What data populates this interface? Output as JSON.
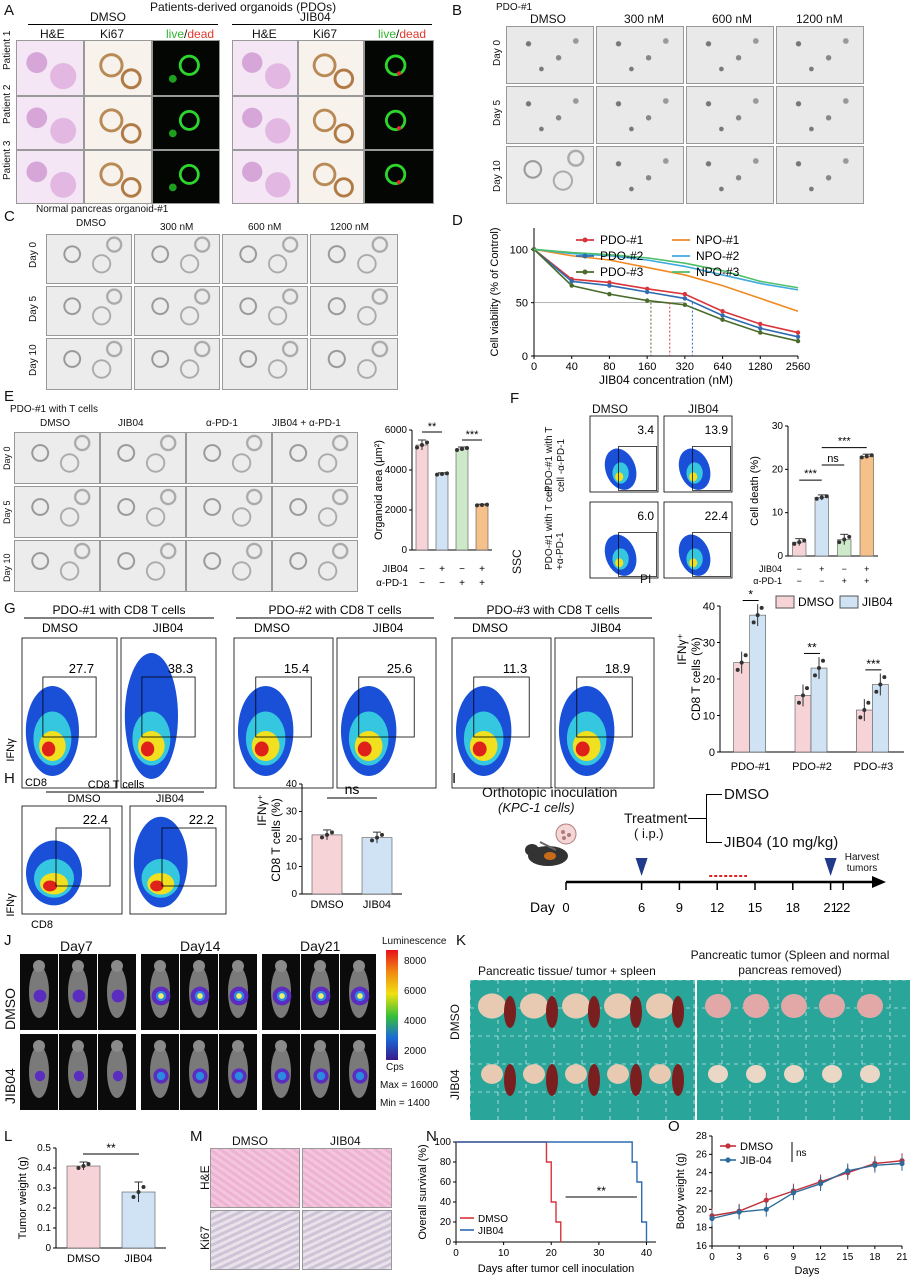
{
  "A": {
    "letter": "A",
    "title": "Patients-derived organoids (PDOs)",
    "group1": "DMSO",
    "group2": "JIB04",
    "col_he": "H&E",
    "col_ki67": "Ki67",
    "col_live": "live",
    "col_slash": "/",
    "col_dead": "dead",
    "rows": [
      "Patient 1",
      "Patient 2",
      "Patient 3"
    ]
  },
  "B": {
    "letter": "B",
    "title": "PDO-#1",
    "cols": [
      "DMSO",
      "300 nM",
      "600 nM",
      "1200 nM"
    ],
    "rows": [
      "Day 0",
      "Day 5",
      "Day 10"
    ]
  },
  "C": {
    "letter": "C",
    "title": "Normal pancreas organoid-#1",
    "cols": [
      "DMSO",
      "300 nM",
      "600 nM",
      "1200 nM"
    ],
    "rows": [
      "Day 0",
      "Day 5",
      "Day 10"
    ]
  },
  "D": {
    "letter": "D",
    "ylabel": "Cell viability (% of Control)",
    "xlabel": "JIB04 concentration (nM)",
    "legend": [
      "PDO-#1",
      "PDO-#2",
      "PDO-#3",
      "NPO-#1",
      "NPO-#2",
      "NPO-#3"
    ],
    "xticks": [
      "0",
      "40",
      "80",
      "160",
      "320",
      "640",
      "1280",
      "2560"
    ],
    "yticks": [
      "0",
      "50",
      "100"
    ]
  },
  "E": {
    "letter": "E",
    "title": "PDO-#1 with T cells",
    "cols": [
      "DMSO",
      "JIB04",
      "α-PD-1",
      "JIB04 + α-PD-1"
    ],
    "rows": [
      "Day 0",
      "Day 5",
      "Day 10"
    ],
    "ylabel": "Organoid area (μm²)",
    "yticks": [
      "0",
      "2000",
      "4000",
      "6000"
    ],
    "sig": [
      "**",
      "***"
    ],
    "row_jib": "JIB04",
    "row_pd1": "α-PD-1",
    "jib_signs": [
      "−",
      "+",
      "−",
      "+"
    ],
    "pd1_signs": [
      "−",
      "−",
      "+",
      "+"
    ]
  },
  "F": {
    "letter": "F",
    "cols": [
      "DMSO",
      "JIB04"
    ],
    "row1": "PDO-#1 with T cell -α-PD-1",
    "row2": "PDO-#1 with T cell +α-PD-1",
    "values": [
      "3.4",
      "13.9",
      "6.0",
      "22.4"
    ],
    "ssc": "SSC",
    "pi": "PI",
    "ylabel": "Cell death (%)",
    "yticks": [
      "0",
      "10",
      "20",
      "30"
    ],
    "sig": [
      "***",
      "ns",
      "***"
    ],
    "row_jib": "JIB04",
    "row_pd1": "α-PD-1",
    "jib_signs": [
      "−",
      "+",
      "−",
      "+"
    ],
    "pd1_signs": [
      "−",
      "−",
      "+",
      "+"
    ]
  },
  "G": {
    "letter": "G",
    "groups": [
      "PDO-#1 with CD8 T cells",
      "PDO-#2 with CD8 T cells",
      "PDO-#3 with CD8 T cells"
    ],
    "sub": [
      "DMSO",
      "JIB04"
    ],
    "values": [
      "27.7",
      "38.3",
      "15.4",
      "25.6",
      "11.3",
      "18.9"
    ],
    "xaxis": "CD8",
    "yaxis": "IFNγ",
    "ylabel_main": "CD8 T cells (%)",
    "ylabel_sup": "IFNγ⁺",
    "legend": [
      "DMSO",
      "JIB04"
    ],
    "categories": [
      "PDO-#1",
      "PDO-#2",
      "PDO-#3"
    ],
    "yticks": [
      "0",
      "10",
      "20",
      "30",
      "40"
    ],
    "sig": [
      "*",
      "**",
      "***"
    ]
  },
  "H": {
    "letter": "H",
    "title": "CD8 T cells",
    "sub": [
      "DMSO",
      "JIB04"
    ],
    "values": [
      "22.4",
      "22.2"
    ],
    "xaxis": "CD8",
    "yaxis": "IFNγ",
    "ylabel_main": "CD8 T cells (%)",
    "ylabel_sup": "IFNγ⁺",
    "yticks": [
      "0",
      "10",
      "20",
      "30",
      "40"
    ],
    "sig": "ns",
    "categories": [
      "DMSO",
      "JIB04"
    ]
  },
  "I": {
    "letter": "I",
    "title": "Orthotopic inoculation",
    "subtitle": "(KPC-1 cells)",
    "treatment": "Treatment",
    "route": "( i.p.)",
    "arm1": "DMSO",
    "arm2": "JIB04  (10 mg/kg)",
    "harvest": "Harvest tumors",
    "day": "Day",
    "days": [
      "0",
      "6",
      "9",
      "12",
      "15",
      "18",
      "21",
      "22"
    ]
  },
  "J": {
    "letter": "J",
    "cols": [
      "Day7",
      "Day14",
      "Day21"
    ],
    "rows": [
      "DMSO",
      "JIB04"
    ],
    "scale_title": "Luminescence",
    "scale_ticks": [
      "8000",
      "6000",
      "4000",
      "2000"
    ],
    "scale_unit": "Cps",
    "max": "Max = 16000",
    "min": "Min = 1400"
  },
  "K": {
    "letter": "K",
    "left_title": "Pancreatic tissue/ tumor + spleen",
    "right_title": "Pancreatic tumor (Spleen and normal pancreas removed)",
    "rows": [
      "DMSO",
      "JIB04"
    ]
  },
  "L": {
    "letter": "L",
    "ylabel": "Tumor weight (g)",
    "yticks": [
      "0",
      "0.1",
      "0.2",
      "0.3",
      "0.4",
      "0.5"
    ],
    "categories": [
      "DMSO",
      "JIB04"
    ],
    "sig": "**"
  },
  "M": {
    "letter": "M",
    "cols": [
      "DMSO",
      "JIB04"
    ],
    "rows": [
      "H&E",
      "Ki67"
    ]
  },
  "N": {
    "letter": "N",
    "ylabel": "Overall survival (%)",
    "xlabel": "Days after tumor cell inoculation",
    "xticks": [
      "0",
      "10",
      "20",
      "30",
      "40"
    ],
    "yticks": [
      "0",
      "20",
      "40",
      "60",
      "80",
      "100"
    ],
    "legend": [
      "DMSO",
      "JIB04"
    ],
    "sig": "**"
  },
  "O": {
    "letter": "O",
    "ylabel": "Body weight (g)",
    "xlabel": "Days",
    "xticks": [
      "0",
      "3",
      "6",
      "9",
      "12",
      "15",
      "18",
      "21"
    ],
    "yticks": [
      "16",
      "18",
      "20",
      "22",
      "24",
      "26",
      "28"
    ],
    "legend": [
      "DMSO",
      "JIB-04"
    ],
    "sig": "ns"
  },
  "colors": {
    "dmso_bar": "#f6d3d6",
    "jib_bar": "#cfe3f4",
    "pd1_bar": "#cde9c9",
    "combo_bar": "#f6c08a",
    "pdo1": "#d9343a",
    "pdo2": "#2e6bb0",
    "pdo3": "#4a6b2a",
    "npo1": "#f08a24",
    "npo2": "#3fa9e0",
    "npo3": "#4cbf6a"
  },
  "chart_data": [
    {
      "type": "line",
      "panel": "D",
      "x": [
        0,
        40,
        80,
        160,
        320,
        640,
        1280,
        2560
      ],
      "series": [
        {
          "name": "PDO-#1",
          "values": [
            100,
            72,
            69,
            63,
            58,
            42,
            30,
            22
          ]
        },
        {
          "name": "PDO-#2",
          "values": [
            100,
            70,
            66,
            60,
            54,
            38,
            26,
            18
          ]
        },
        {
          "name": "PDO-#3",
          "values": [
            100,
            66,
            58,
            52,
            48,
            34,
            22,
            14
          ]
        },
        {
          "name": "NPO-#1",
          "values": [
            100,
            94,
            90,
            83,
            76,
            66,
            54,
            42
          ]
        },
        {
          "name": "NPO-#2",
          "values": [
            100,
            96,
            94,
            90,
            84,
            76,
            68,
            62
          ]
        },
        {
          "name": "NPO-#3",
          "values": [
            100,
            97,
            95,
            92,
            87,
            80,
            70,
            64
          ]
        }
      ],
      "xlabel": "JIB04 concentration (nM)",
      "ylabel": "Cell viability (% of Control)",
      "ylim": [
        0,
        120
      ]
    },
    {
      "type": "bar",
      "panel": "E",
      "categories": [
        "DMSO",
        "JIB04",
        "α-PD-1",
        "JIB04 + α-PD-1"
      ],
      "values": [
        5250,
        3800,
        5050,
        2250
      ],
      "ylabel": "Organoid area (μm²)",
      "ylim": [
        0,
        6000
      ]
    },
    {
      "type": "bar",
      "panel": "F",
      "categories": [
        "DMSO",
        "JIB04",
        "α-PD-1",
        "JIB04 + α-PD-1"
      ],
      "values": [
        3.2,
        13.5,
        3.8,
        23
      ],
      "ylabel": "Cell death (%)",
      "ylim": [
        0,
        30
      ]
    },
    {
      "type": "bar",
      "panel": "G",
      "categories": [
        "PDO-#1",
        "PDO-#2",
        "PDO-#3"
      ],
      "series": [
        {
          "name": "DMSO",
          "values": [
            24.5,
            15.5,
            11.5
          ]
        },
        {
          "name": "JIB04",
          "values": [
            37.5,
            23,
            18.5
          ]
        }
      ],
      "ylabel": "IFNγ⁺ CD8 T cells (%)",
      "ylim": [
        0,
        40
      ]
    },
    {
      "type": "bar",
      "panel": "H",
      "categories": [
        "DMSO",
        "JIB04"
      ],
      "values": [
        21.5,
        20.5
      ],
      "ylabel": "IFNγ⁺ CD8 T cells (%)",
      "ylim": [
        0,
        40
      ]
    },
    {
      "type": "bar",
      "panel": "L",
      "categories": [
        "DMSO",
        "JIB04"
      ],
      "values": [
        0.41,
        0.28
      ],
      "ylabel": "Tumor weight (g)",
      "ylim": [
        0,
        0.5
      ]
    },
    {
      "type": "line",
      "panel": "N",
      "series": [
        {
          "name": "DMSO",
          "x": [
            0,
            19,
            19,
            20,
            20,
            21,
            21,
            22,
            22
          ],
          "values": [
            100,
            100,
            80,
            80,
            40,
            40,
            20,
            20,
            0
          ]
        },
        {
          "name": "JIB04",
          "x": [
            0,
            37,
            37,
            38,
            38,
            39,
            39,
            40,
            40
          ],
          "values": [
            100,
            100,
            80,
            80,
            60,
            60,
            20,
            20,
            0
          ]
        }
      ],
      "xlabel": "Days after tumor cell inoculation",
      "ylabel": "Overall survival (%)",
      "ylim": [
        0,
        100
      ]
    },
    {
      "type": "line",
      "panel": "O",
      "x": [
        0,
        3,
        6,
        9,
        12,
        15,
        18,
        21
      ],
      "series": [
        {
          "name": "DMSO",
          "values": [
            19.3,
            19.8,
            21.0,
            22.0,
            23.0,
            24.0,
            25.0,
            25.3
          ]
        },
        {
          "name": "JIB-04",
          "values": [
            19.0,
            19.7,
            20.0,
            21.8,
            22.8,
            24.2,
            24.8,
            25.0
          ]
        }
      ],
      "xlabel": "Days",
      "ylabel": "Body weight (g)",
      "ylim": [
        16,
        28
      ]
    }
  ]
}
